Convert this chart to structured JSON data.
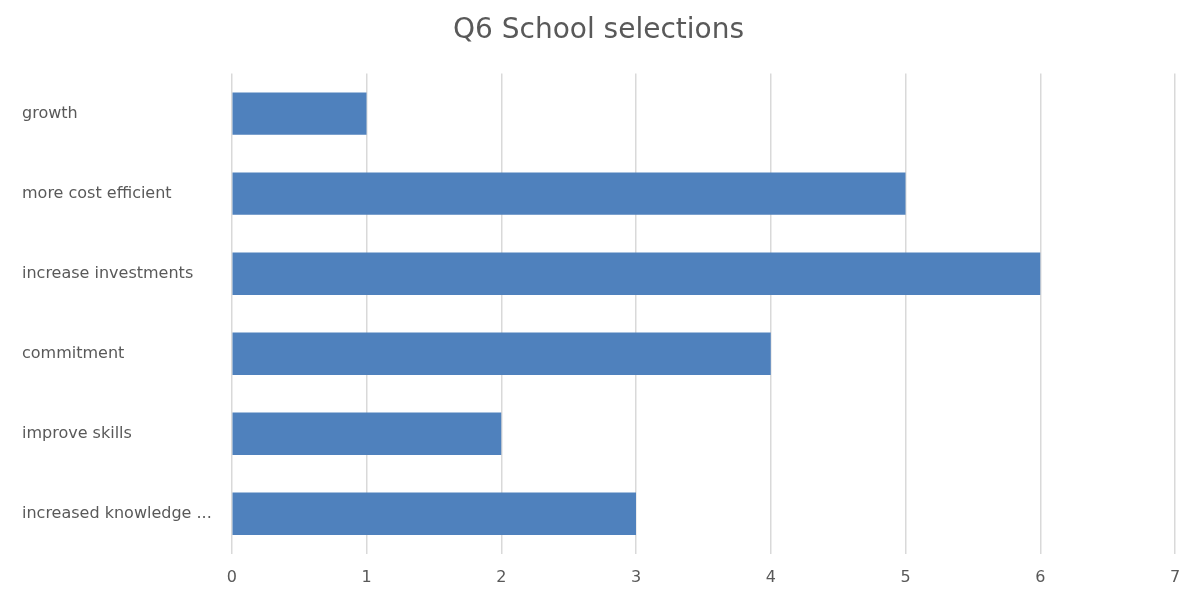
{
  "chart_data": {
    "type": "bar",
    "orientation": "horizontal",
    "title": "Q6 School selections",
    "categories": [
      "growth",
      "more cost efficient",
      "increase investments",
      "commitment",
      "improve skills",
      "increased knowledge ..."
    ],
    "values": [
      1,
      5,
      6,
      4,
      2,
      3
    ],
    "color": "#4f81bd",
    "xlim": [
      0,
      7
    ],
    "xticks": [
      0,
      1,
      2,
      3,
      4,
      5,
      6,
      7
    ],
    "grid": "x",
    "legend": false
  }
}
